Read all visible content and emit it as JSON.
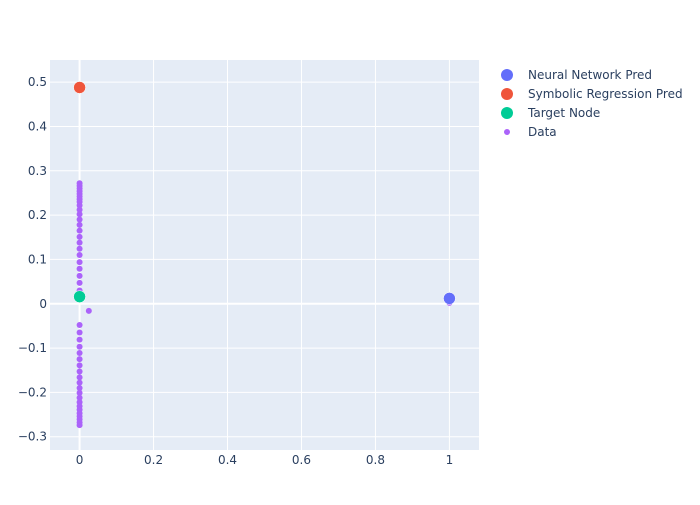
{
  "chart_data": {
    "type": "scatter",
    "title": "",
    "xlabel": "",
    "ylabel": "",
    "xlim": [
      -0.08,
      1.08
    ],
    "ylim": [
      -0.33,
      0.55
    ],
    "x_ticks": [
      0,
      0.2,
      0.4,
      0.6,
      0.8,
      1
    ],
    "x_tick_labels": [
      "0",
      "0.2",
      "0.4",
      "0.6",
      "0.8",
      "1"
    ],
    "y_ticks": [
      -0.3,
      -0.2,
      -0.1,
      0,
      0.1,
      0.2,
      0.3,
      0.4,
      0.5
    ],
    "y_tick_labels": [
      "−0.3",
      "−0.2",
      "−0.1",
      "0",
      "0.1",
      "0.2",
      "0.3",
      "0.4",
      "0.5"
    ],
    "grid": true,
    "plot_background": "#e5ecf6",
    "legend_position": "top-right",
    "series": [
      {
        "name": "Neural Network Pred",
        "color": "#636efa",
        "marker": "large",
        "points": [
          [
            1,
            0.012
          ]
        ]
      },
      {
        "name": "Symbolic Regression Pred",
        "color": "#ef553b",
        "marker": "large",
        "points": [
          [
            0,
            0.488
          ]
        ]
      },
      {
        "name": "Target Node",
        "color": "#00cc96",
        "marker": "large",
        "points": [
          [
            0,
            0.016
          ]
        ]
      },
      {
        "name": "Data",
        "color": "#ab63fa",
        "marker": "small",
        "points": [
          [
            0,
            0.272
          ],
          [
            0,
            0.266
          ],
          [
            0,
            0.26
          ],
          [
            0,
            0.254
          ],
          [
            0,
            0.248
          ],
          [
            0,
            0.242
          ],
          [
            0,
            0.236
          ],
          [
            0,
            0.23
          ],
          [
            0,
            0.222
          ],
          [
            0,
            0.212
          ],
          [
            0,
            0.202
          ],
          [
            0,
            0.19
          ],
          [
            0,
            0.178
          ],
          [
            0,
            0.165
          ],
          [
            0,
            0.151
          ],
          [
            0,
            0.138
          ],
          [
            0,
            0.124
          ],
          [
            0,
            0.11
          ],
          [
            0,
            0.094
          ],
          [
            0,
            0.079
          ],
          [
            0,
            0.063
          ],
          [
            0,
            0.047
          ],
          [
            0,
            0.03
          ],
          [
            0.025,
            -0.016
          ],
          [
            0,
            -0.048
          ],
          [
            0,
            -0.065
          ],
          [
            0,
            -0.081
          ],
          [
            0,
            -0.097
          ],
          [
            0,
            -0.111
          ],
          [
            0,
            -0.125
          ],
          [
            0,
            -0.139
          ],
          [
            0,
            -0.153
          ],
          [
            0,
            -0.166
          ],
          [
            0,
            -0.178
          ],
          [
            0,
            -0.19
          ],
          [
            0,
            -0.201
          ],
          [
            0,
            -0.212
          ],
          [
            0,
            -0.222
          ],
          [
            0,
            -0.231
          ],
          [
            0,
            -0.239
          ],
          [
            0,
            -0.247
          ],
          [
            0,
            -0.254
          ],
          [
            0,
            -0.261
          ],
          [
            0,
            -0.268
          ],
          [
            0,
            -0.274
          ],
          [
            1,
            0.002
          ]
        ]
      }
    ]
  }
}
